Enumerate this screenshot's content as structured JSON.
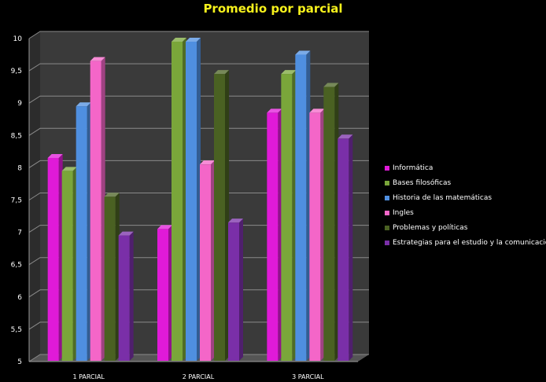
{
  "chart_data": {
    "type": "bar",
    "title": "Promedio por parcial",
    "xlabel": "",
    "ylabel": "",
    "categories": [
      "1 PARCIAL",
      "2 PARCIAL",
      "3 PARCIAL"
    ],
    "ylim": [
      5,
      10
    ],
    "yticks": [
      "5",
      "5,5",
      "6",
      "6,5",
      "7",
      "7,5",
      "8",
      "8,5",
      "9",
      "9,5",
      "10"
    ],
    "grid": true,
    "legend_position": "right",
    "series": [
      {
        "name": "Informática",
        "color": "#e01ad8",
        "values": [
          8.2,
          7.1,
          8.9
        ]
      },
      {
        "name": "Bases filosóficas",
        "color": "#7aa63a",
        "values": [
          8.0,
          10.0,
          9.5
        ]
      },
      {
        "name": "Historia de las matemáticas",
        "color": "#4f8fe0",
        "values": [
          9.0,
          10.0,
          9.8
        ]
      },
      {
        "name": "Ingles",
        "color": "#f466c8",
        "values": [
          9.7,
          8.1,
          8.9
        ]
      },
      {
        "name": "Problemas y políticas",
        "color": "#4a6122",
        "values": [
          7.6,
          9.5,
          9.3
        ]
      },
      {
        "name": "Estrategias para el estudio  y la comunicación",
        "color": "#7a2fa8",
        "values": [
          7.0,
          7.2,
          8.5
        ]
      }
    ]
  }
}
